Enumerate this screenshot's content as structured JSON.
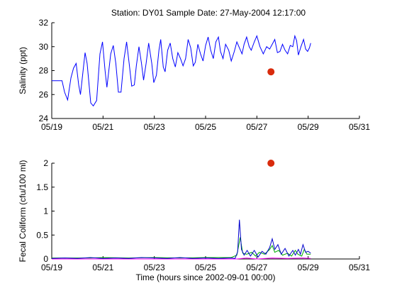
{
  "figure": {
    "title": "Station: DY01  Sample Date: 27-May-2004 12:17:00"
  },
  "chart_data": [
    {
      "type": "line",
      "title": "Station: DY01  Sample Date: 27-May-2004 12:17:00",
      "xlabel": "",
      "ylabel": "Salinity (ppt)",
      "xlim": [
        0,
        12
      ],
      "ylim": [
        24,
        32
      ],
      "x_ticks": [
        {
          "value": 0,
          "label": "05/19"
        },
        {
          "value": 2,
          "label": "05/21"
        },
        {
          "value": 4,
          "label": "05/23"
        },
        {
          "value": 6,
          "label": "05/25"
        },
        {
          "value": 8,
          "label": "05/27"
        },
        {
          "value": 10,
          "label": "05/29"
        },
        {
          "value": 12,
          "label": "05/31"
        }
      ],
      "y_ticks": [
        {
          "value": 24,
          "label": "24"
        },
        {
          "value": 26,
          "label": "26"
        },
        {
          "value": 28,
          "label": "28"
        },
        {
          "value": 30,
          "label": "30"
        },
        {
          "value": 32,
          "label": "32"
        }
      ],
      "grid": false,
      "series": [
        {
          "color": "#0000ff",
          "points": [
            [
              0.0,
              27.15
            ],
            [
              0.4,
              27.15
            ],
            [
              0.5,
              26.2
            ],
            [
              0.62,
              25.55
            ],
            [
              0.75,
              27.4
            ],
            [
              0.85,
              28.2
            ],
            [
              0.95,
              28.6
            ],
            [
              1.05,
              26.8
            ],
            [
              1.12,
              26.0
            ],
            [
              1.3,
              29.5
            ],
            [
              1.38,
              28.6
            ],
            [
              1.52,
              25.3
            ],
            [
              1.62,
              25.05
            ],
            [
              1.75,
              25.5
            ],
            [
              1.88,
              29.4
            ],
            [
              1.98,
              30.4
            ],
            [
              2.08,
              28.0
            ],
            [
              2.15,
              26.6
            ],
            [
              2.3,
              29.4
            ],
            [
              2.4,
              30.1
            ],
            [
              2.5,
              28.6
            ],
            [
              2.6,
              26.2
            ],
            [
              2.7,
              26.2
            ],
            [
              2.82,
              29.0
            ],
            [
              2.92,
              30.4
            ],
            [
              3.02,
              28.6
            ],
            [
              3.12,
              26.7
            ],
            [
              3.22,
              26.8
            ],
            [
              3.3,
              28.4
            ],
            [
              3.4,
              30.0
            ],
            [
              3.5,
              28.6
            ],
            [
              3.58,
              27.2
            ],
            [
              3.68,
              28.6
            ],
            [
              3.78,
              30.3
            ],
            [
              3.9,
              28.6
            ],
            [
              3.98,
              27.0
            ],
            [
              4.08,
              27.6
            ],
            [
              4.18,
              29.7
            ],
            [
              4.25,
              30.6
            ],
            [
              4.35,
              28.3
            ],
            [
              4.42,
              27.9
            ],
            [
              4.52,
              29.7
            ],
            [
              4.62,
              30.3
            ],
            [
              4.72,
              29.0
            ],
            [
              4.82,
              28.3
            ],
            [
              4.92,
              29.5
            ],
            [
              5.02,
              29.0
            ],
            [
              5.12,
              28.4
            ],
            [
              5.22,
              29.0
            ],
            [
              5.32,
              30.6
            ],
            [
              5.42,
              29.9
            ],
            [
              5.52,
              28.4
            ],
            [
              5.6,
              28.7
            ],
            [
              5.7,
              30.2
            ],
            [
              5.8,
              29.4
            ],
            [
              5.9,
              28.8
            ],
            [
              6.0,
              30.1
            ],
            [
              6.1,
              30.8
            ],
            [
              6.2,
              29.7
            ],
            [
              6.3,
              29.0
            ],
            [
              6.4,
              30.4
            ],
            [
              6.5,
              30.8
            ],
            [
              6.58,
              29.6
            ],
            [
              6.68,
              29.0
            ],
            [
              6.78,
              30.2
            ],
            [
              6.9,
              29.7
            ],
            [
              7.0,
              28.8
            ],
            [
              7.12,
              29.6
            ],
            [
              7.22,
              30.4
            ],
            [
              7.32,
              29.9
            ],
            [
              7.42,
              29.4
            ],
            [
              7.5,
              30.2
            ],
            [
              7.6,
              30.8
            ],
            [
              7.7,
              30.0
            ],
            [
              7.78,
              29.7
            ],
            [
              7.9,
              30.4
            ],
            [
              8.0,
              30.9
            ],
            [
              8.12,
              30.0
            ],
            [
              8.25,
              29.4
            ],
            [
              8.38,
              30.0
            ],
            [
              8.5,
              29.8
            ],
            [
              8.6,
              30.2
            ],
            [
              8.7,
              30.6
            ],
            [
              8.8,
              29.5
            ],
            [
              8.9,
              29.6
            ],
            [
              9.0,
              30.2
            ],
            [
              9.1,
              29.7
            ],
            [
              9.2,
              29.4
            ],
            [
              9.3,
              30.1
            ],
            [
              9.4,
              30.0
            ],
            [
              9.48,
              30.9
            ],
            [
              9.55,
              30.5
            ],
            [
              9.62,
              29.3
            ],
            [
              9.72,
              30.0
            ],
            [
              9.82,
              30.6
            ],
            [
              9.9,
              29.8
            ],
            [
              9.98,
              29.6
            ],
            [
              10.05,
              29.9
            ],
            [
              10.1,
              30.3
            ]
          ]
        }
      ],
      "markers": [
        {
          "x": 8.55,
          "y": 27.9,
          "color": "#d92b0c"
        }
      ]
    },
    {
      "type": "line",
      "title": "",
      "xlabel": "Time (hours since 2002-09-01 00:00)",
      "ylabel": "Fecal Coliform (cfu/100 ml)",
      "xlim": [
        0,
        12
      ],
      "ylim": [
        0,
        2
      ],
      "x_ticks": [
        {
          "value": 0,
          "label": "05/19"
        },
        {
          "value": 2,
          "label": "05/21"
        },
        {
          "value": 4,
          "label": "05/23"
        },
        {
          "value": 6,
          "label": "05/25"
        },
        {
          "value": 8,
          "label": "05/27"
        },
        {
          "value": 10,
          "label": "05/29"
        },
        {
          "value": 12,
          "label": "05/31"
        }
      ],
      "y_ticks": [
        {
          "value": 0,
          "label": "0"
        },
        {
          "value": 0.5,
          "label": "0.5"
        },
        {
          "value": 1,
          "label": "1"
        },
        {
          "value": 1.5,
          "label": "1.5"
        },
        {
          "value": 2,
          "label": "2"
        }
      ],
      "grid": false,
      "series": [
        {
          "color": "#ff00ff",
          "points": [
            [
              0,
              0.0
            ],
            [
              7.2,
              0.0
            ],
            [
              7.6,
              0.02
            ],
            [
              8.0,
              0.0
            ],
            [
              8.6,
              0.02
            ],
            [
              9.2,
              0.01
            ],
            [
              9.8,
              0.02
            ],
            [
              10.1,
              0.01
            ]
          ]
        },
        {
          "color": "#00aa00",
          "points": [
            [
              0,
              0.02
            ],
            [
              1.5,
              0.02
            ],
            [
              2.0,
              0.03
            ],
            [
              3.0,
              0.02
            ],
            [
              4.0,
              0.03
            ],
            [
              5.0,
              0.02
            ],
            [
              6.0,
              0.03
            ],
            [
              7.0,
              0.03
            ],
            [
              7.22,
              0.08
            ],
            [
              7.35,
              0.45
            ],
            [
              7.45,
              0.12
            ],
            [
              7.6,
              0.1
            ],
            [
              7.8,
              0.14
            ],
            [
              7.95,
              0.06
            ],
            [
              8.1,
              0.14
            ],
            [
              8.3,
              0.1
            ],
            [
              8.5,
              0.2
            ],
            [
              8.6,
              0.28
            ],
            [
              8.7,
              0.14
            ],
            [
              8.85,
              0.18
            ],
            [
              9.0,
              0.08
            ],
            [
              9.2,
              0.12
            ],
            [
              9.35,
              0.06
            ],
            [
              9.5,
              0.18
            ],
            [
              9.6,
              0.1
            ],
            [
              9.75,
              0.06
            ],
            [
              9.85,
              0.2
            ],
            [
              9.95,
              0.1
            ],
            [
              10.1,
              0.1
            ]
          ]
        },
        {
          "color": "#0000cc",
          "points": [
            [
              0,
              0.01
            ],
            [
              0.5,
              0.02
            ],
            [
              1.0,
              0.01
            ],
            [
              1.5,
              0.03
            ],
            [
              2.0,
              0.01
            ],
            [
              2.5,
              0.02
            ],
            [
              3.0,
              0.01
            ],
            [
              3.5,
              0.03
            ],
            [
              4.0,
              0.02
            ],
            [
              4.5,
              0.01
            ],
            [
              5.0,
              0.03
            ],
            [
              5.5,
              0.01
            ],
            [
              6.0,
              0.02
            ],
            [
              6.5,
              0.01
            ],
            [
              7.0,
              0.02
            ],
            [
              7.15,
              0.01
            ],
            [
              7.25,
              0.15
            ],
            [
              7.32,
              0.82
            ],
            [
              7.4,
              0.2
            ],
            [
              7.5,
              0.08
            ],
            [
              7.62,
              0.18
            ],
            [
              7.75,
              0.06
            ],
            [
              7.9,
              0.18
            ],
            [
              8.05,
              0.04
            ],
            [
              8.2,
              0.16
            ],
            [
              8.35,
              0.1
            ],
            [
              8.5,
              0.24
            ],
            [
              8.6,
              0.42
            ],
            [
              8.7,
              0.2
            ],
            [
              8.82,
              0.3
            ],
            [
              8.95,
              0.1
            ],
            [
              9.1,
              0.22
            ],
            [
              9.25,
              0.06
            ],
            [
              9.4,
              0.18
            ],
            [
              9.5,
              0.08
            ],
            [
              9.62,
              0.2
            ],
            [
              9.7,
              0.1
            ],
            [
              9.8,
              0.3
            ],
            [
              9.9,
              0.14
            ],
            [
              10.0,
              0.16
            ],
            [
              10.1,
              0.12
            ]
          ]
        }
      ],
      "markers": [
        {
          "x": 8.55,
          "y": 2.0,
          "color": "#d92b0c"
        }
      ]
    }
  ]
}
